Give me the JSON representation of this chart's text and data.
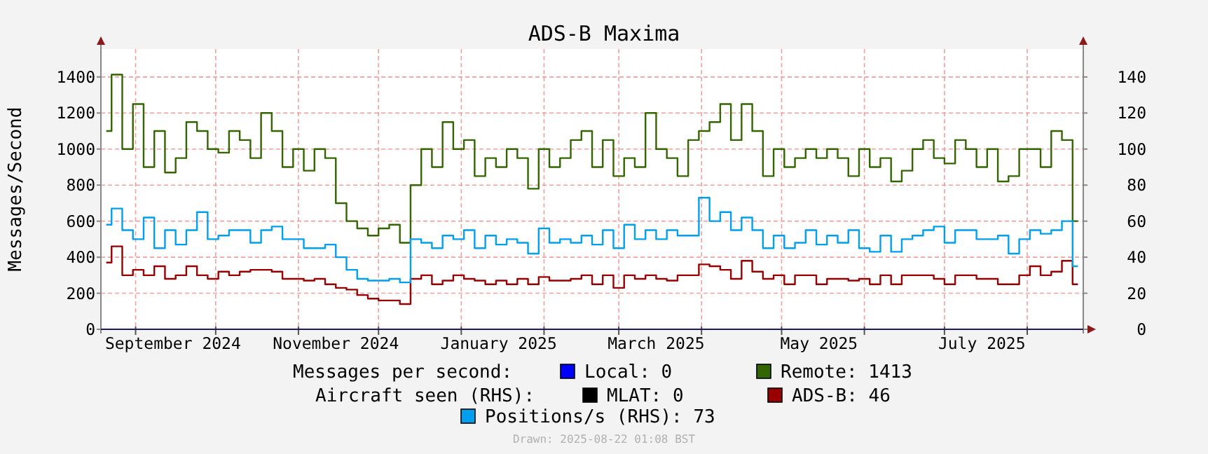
{
  "chart_data": {
    "type": "step",
    "title": "ADS-B Maxima",
    "ylabel": "Messages/Second",
    "x": [
      "2024-08-21",
      "2024-08-25",
      "2024-08-29",
      "2024-09-02",
      "2024-09-06",
      "2024-09-10",
      "2024-09-14",
      "2024-09-18",
      "2024-09-22",
      "2024-09-26",
      "2024-09-30",
      "2024-10-04",
      "2024-10-08",
      "2024-10-12",
      "2024-10-16",
      "2024-10-20",
      "2024-10-24",
      "2024-10-28",
      "2024-11-01",
      "2024-11-05",
      "2024-11-09",
      "2024-11-13",
      "2024-11-17",
      "2024-11-21",
      "2024-11-25",
      "2024-11-29",
      "2024-12-03",
      "2024-12-07",
      "2024-12-11",
      "2024-12-15",
      "2024-12-19",
      "2024-12-23",
      "2024-12-27",
      "2024-12-31",
      "2025-01-04",
      "2025-01-08",
      "2025-01-12",
      "2025-01-16",
      "2025-01-20",
      "2025-01-24",
      "2025-01-28",
      "2025-02-01",
      "2025-02-05",
      "2025-02-09",
      "2025-02-13",
      "2025-02-17",
      "2025-02-21",
      "2025-02-25",
      "2025-03-01",
      "2025-03-05",
      "2025-03-09",
      "2025-03-13",
      "2025-03-17",
      "2025-03-21",
      "2025-03-25",
      "2025-03-29",
      "2025-04-02",
      "2025-04-06",
      "2025-04-10",
      "2025-04-14",
      "2025-04-18",
      "2025-04-22",
      "2025-04-26",
      "2025-04-30",
      "2025-05-04",
      "2025-05-08",
      "2025-05-12",
      "2025-05-16",
      "2025-05-20",
      "2025-05-24",
      "2025-05-28",
      "2025-06-01",
      "2025-06-05",
      "2025-06-09",
      "2025-06-13",
      "2025-06-17",
      "2025-06-21",
      "2025-06-25",
      "2025-06-29",
      "2025-07-03",
      "2025-07-07",
      "2025-07-11",
      "2025-07-15",
      "2025-07-19",
      "2025-07-23",
      "2025-07-27",
      "2025-07-31",
      "2025-08-04",
      "2025-08-08",
      "2025-08-12",
      "2025-08-16",
      "2025-08-20"
    ],
    "series": [
      {
        "name": "Local: 0",
        "color": "#0000ff",
        "values": [
          null,
          null,
          null,
          null,
          null,
          null,
          null,
          null,
          null,
          null,
          null,
          null,
          null,
          null,
          null,
          null,
          null,
          null,
          null,
          null,
          null,
          null,
          null,
          null,
          null,
          null,
          null,
          null,
          null,
          null,
          null,
          null,
          null,
          null,
          null,
          null,
          null,
          null,
          null,
          null,
          null,
          null,
          null,
          null,
          null,
          null,
          null,
          null,
          null,
          null,
          null,
          null,
          null,
          null,
          null,
          null,
          null,
          null,
          null,
          null,
          null,
          null,
          null,
          null,
          null,
          null,
          null,
          null,
          null,
          null,
          null,
          null,
          null,
          null,
          null,
          null,
          null,
          null,
          null,
          null,
          null,
          null,
          null,
          null,
          null,
          null,
          null,
          null,
          null,
          null,
          null,
          null
        ]
      },
      {
        "name": "Remote: 1413",
        "color": "#336600",
        "values": [
          1100,
          1413,
          1000,
          1250,
          900,
          1100,
          870,
          950,
          1150,
          1100,
          1000,
          980,
          1100,
          1050,
          950,
          1200,
          1100,
          900,
          1000,
          880,
          1000,
          950,
          700,
          600,
          560,
          520,
          560,
          580,
          480,
          800,
          1000,
          900,
          1150,
          1000,
          1050,
          850,
          950,
          900,
          1000,
          950,
          780,
          1000,
          900,
          950,
          1050,
          1100,
          900,
          1050,
          850,
          950,
          900,
          1200,
          1000,
          950,
          850,
          1050,
          1100,
          1150,
          1250,
          1050,
          1250,
          1100,
          850,
          1000,
          900,
          950,
          1000,
          950,
          1000,
          950,
          850,
          1000,
          900,
          950,
          820,
          880,
          1000,
          1050,
          950,
          920,
          1050,
          1000,
          900,
          1000,
          820,
          850,
          1000,
          1000,
          900,
          1100,
          1050,
          600
        ]
      },
      {
        "name": "MLAT: 0",
        "color": "#000000",
        "axis": "y2",
        "values": [
          null,
          null,
          null,
          null,
          null,
          null,
          null,
          null,
          null,
          null,
          null,
          null,
          null,
          null,
          null,
          null,
          null,
          null,
          null,
          null,
          null,
          null,
          null,
          null,
          null,
          null,
          null,
          null,
          null,
          null,
          null,
          null,
          null,
          null,
          null,
          null,
          null,
          null,
          null,
          null,
          null,
          null,
          null,
          null,
          null,
          null,
          null,
          null,
          null,
          null,
          null,
          null,
          null,
          null,
          null,
          null,
          null,
          null,
          null,
          null,
          null,
          null,
          null,
          null,
          null,
          null,
          null,
          null,
          null,
          null,
          null,
          null,
          null,
          null,
          null,
          null,
          null,
          null,
          null,
          null,
          null,
          null,
          null,
          null,
          null,
          null,
          null,
          null,
          null,
          null,
          null,
          null
        ]
      },
      {
        "name": "ADS-B: 46",
        "color": "#990000",
        "axis": "y2",
        "values": [
          37,
          46,
          30,
          33,
          30,
          35,
          28,
          30,
          35,
          30,
          28,
          32,
          30,
          32,
          33,
          33,
          32,
          28,
          28,
          27,
          28,
          25,
          23,
          22,
          19,
          17,
          16,
          16,
          14,
          28,
          30,
          25,
          27,
          30,
          28,
          27,
          25,
          27,
          25,
          28,
          25,
          29,
          27,
          27,
          28,
          30,
          25,
          30,
          23,
          30,
          28,
          30,
          28,
          27,
          30,
          30,
          36,
          35,
          33,
          28,
          38,
          32,
          28,
          30,
          25,
          30,
          30,
          25,
          28,
          28,
          27,
          28,
          25,
          30,
          25,
          30,
          30,
          30,
          28,
          25,
          30,
          30,
          28,
          28,
          25,
          25,
          30,
          35,
          30,
          32,
          38,
          25
        ]
      },
      {
        "name": "Positions/s (RHS): 73",
        "color": "#00a0ee",
        "axis": "y2",
        "values": [
          58,
          67,
          55,
          50,
          62,
          45,
          55,
          47,
          55,
          65,
          50,
          52,
          55,
          55,
          48,
          55,
          57,
          50,
          50,
          45,
          45,
          47,
          40,
          33,
          28,
          27,
          27,
          28,
          26,
          50,
          48,
          45,
          52,
          50,
          55,
          45,
          52,
          47,
          50,
          48,
          42,
          56,
          48,
          50,
          48,
          52,
          47,
          55,
          45,
          58,
          50,
          55,
          50,
          55,
          52,
          52,
          73,
          60,
          65,
          55,
          62,
          55,
          45,
          52,
          45,
          48,
          55,
          47,
          52,
          48,
          55,
          45,
          43,
          52,
          43,
          50,
          52,
          55,
          57,
          48,
          55,
          55,
          50,
          50,
          52,
          42,
          50,
          55,
          53,
          55,
          60,
          35
        ]
      }
    ],
    "xlim": [
      "2024-08-19",
      "2025-08-22"
    ],
    "xticks": [
      {
        "value": "2024-09-01",
        "label": null
      },
      {
        "value": "2024-09-15",
        "label": "September 2024"
      },
      {
        "value": "2024-10-01",
        "label": null
      },
      {
        "value": "2024-11-01",
        "label": null
      },
      {
        "value": "2024-11-15",
        "label": "November 2024"
      },
      {
        "value": "2024-12-01",
        "label": null
      },
      {
        "value": "2025-01-01",
        "label": null
      },
      {
        "value": "2025-01-15",
        "label": "January 2025"
      },
      {
        "value": "2025-02-01",
        "label": null
      },
      {
        "value": "2025-03-01",
        "label": null
      },
      {
        "value": "2025-03-15",
        "label": "March 2025"
      },
      {
        "value": "2025-04-01",
        "label": null
      },
      {
        "value": "2025-05-01",
        "label": null
      },
      {
        "value": "2025-05-15",
        "label": "May 2025"
      },
      {
        "value": "2025-06-01",
        "label": null
      },
      {
        "value": "2025-07-01",
        "label": null
      },
      {
        "value": "2025-07-15",
        "label": "July 2025"
      },
      {
        "value": "2025-08-01",
        "label": null
      }
    ],
    "ylim": [
      0,
      1555
    ],
    "yticks": [
      0,
      200,
      400,
      600,
      800,
      1000,
      1200,
      1400
    ],
    "y2lim": [
      0,
      155.5
    ],
    "y2ticks": [
      0,
      20,
      40,
      60,
      80,
      100,
      120,
      140
    ],
    "grid": true,
    "legend": "bottom",
    "annotations": [
      "Messages per second:",
      "Aircraft seen (RHS):",
      "Drawn: 2025-08-22 01:08 BST"
    ]
  }
}
